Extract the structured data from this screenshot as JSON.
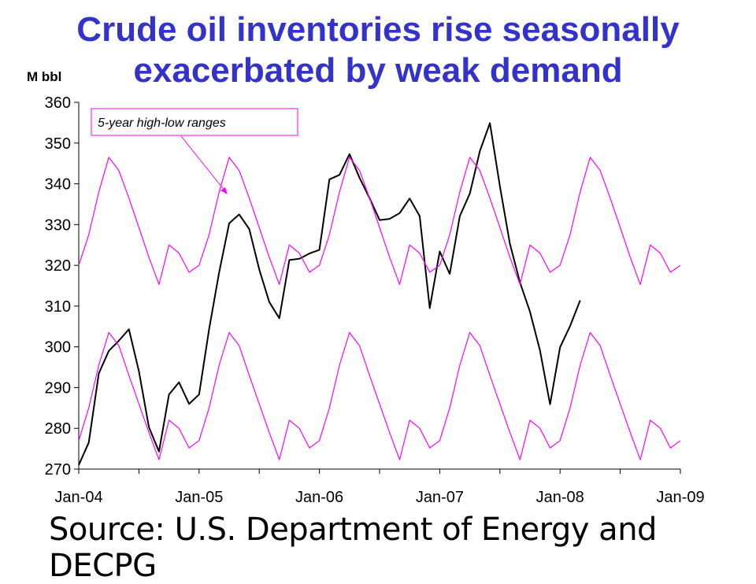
{
  "chart_data": {
    "type": "line",
    "title": [
      "Crude oil inventories rise seasonally",
      "exacerbated by weak demand"
    ],
    "ylabel": "M bbl",
    "ylim": [
      270,
      360
    ],
    "yticks": [
      270,
      280,
      290,
      300,
      310,
      320,
      330,
      340,
      350,
      360
    ],
    "xlim": [
      "2004-01",
      "2009-01"
    ],
    "xticks": [
      {
        "date": "2004-01",
        "label": "Jan-04"
      },
      {
        "date": "2005-01",
        "label": "Jan-05"
      },
      {
        "date": "2006-01",
        "label": "Jan-06"
      },
      {
        "date": "2007-01",
        "label": "Jan-07"
      },
      {
        "date": "2008-01",
        "label": "Jan-08"
      },
      {
        "date": "2009-01",
        "label": "Jan-09"
      }
    ],
    "grid": false,
    "annotation": "5-year high-low ranges",
    "colors": {
      "title": "#3333cc",
      "range_lines": "#ff00ff",
      "inventory_line": "#000000"
    },
    "series": [
      {
        "role": "inventory",
        "dates": [
          "2004-01",
          "2004-02",
          "2004-03",
          "2004-04",
          "2004-05",
          "2004-06",
          "2004-07",
          "2004-08",
          "2004-09",
          "2004-10",
          "2004-11",
          "2004-12",
          "2005-01",
          "2005-02",
          "2005-03",
          "2005-04",
          "2005-05",
          "2005-06",
          "2005-07",
          "2005-08",
          "2005-09",
          "2005-10",
          "2005-11",
          "2005-12",
          "2006-01",
          "2006-02",
          "2006-03",
          "2006-04",
          "2006-05",
          "2006-06",
          "2006-07",
          "2006-08",
          "2006-09",
          "2006-10",
          "2006-11",
          "2006-12",
          "2007-01",
          "2007-02",
          "2007-03",
          "2007-04",
          "2007-05",
          "2007-06",
          "2007-07",
          "2007-08",
          "2007-09",
          "2007-10",
          "2007-11",
          "2007-12",
          "2008-01",
          "2008-02",
          "2008-03",
          "2008-04"
        ],
        "values": [
          271,
          276.5,
          293.5,
          299,
          301.5,
          304.3,
          294,
          280.3,
          274.3,
          288.3,
          291.3,
          286,
          288.3,
          304.3,
          318.3,
          330.3,
          332.5,
          328.9,
          319,
          311,
          307,
          321.3,
          321.6,
          322.9,
          323.8,
          341.1,
          342.2,
          347.3,
          341.5,
          336.5,
          331.1,
          331.4,
          332.8,
          336.4,
          332.1,
          309.5,
          323.4,
          317.9,
          332.1,
          337.6,
          348,
          354.9,
          339.4,
          325.3,
          315.8,
          308.6,
          299.1,
          285.9,
          299.9,
          305.1,
          311.4,
          null
        ]
      },
      {
        "role": "range-high",
        "dates": [
          "2004-01",
          "2004-02",
          "2004-03",
          "2004-04",
          "2004-05",
          "2004-06",
          "2004-07",
          "2004-08",
          "2004-09",
          "2004-10",
          "2004-11",
          "2004-12",
          "2005-01",
          "2005-02",
          "2005-03",
          "2005-04",
          "2005-05",
          "2005-06",
          "2005-07",
          "2005-08",
          "2005-09",
          "2005-10",
          "2005-11",
          "2005-12",
          "2006-01",
          "2006-02",
          "2006-03",
          "2006-04",
          "2006-05",
          "2006-06",
          "2006-07",
          "2006-08",
          "2006-09",
          "2006-10",
          "2006-11",
          "2006-12",
          "2007-01",
          "2007-02",
          "2007-03",
          "2007-04",
          "2007-05",
          "2007-06",
          "2007-07",
          "2007-08",
          "2007-09",
          "2007-10",
          "2007-11",
          "2007-12",
          "2008-01",
          "2008-02",
          "2008-03",
          "2008-04",
          "2008-05",
          "2008-06",
          "2008-07",
          "2008-08",
          "2008-09",
          "2008-10",
          "2008-11",
          "2008-12",
          "2009-01"
        ],
        "values": [
          320,
          327.5,
          338,
          346.5,
          343.3,
          336.5,
          329.3,
          322,
          315.3,
          325,
          323,
          318.3,
          320,
          327.5,
          338,
          346.5,
          343.3,
          336.5,
          329.3,
          322,
          315.3,
          325,
          323,
          318.3,
          320,
          327.5,
          338,
          346.5,
          343.3,
          336.5,
          329.3,
          322,
          315.3,
          325,
          323,
          318.3,
          320,
          327.5,
          338,
          346.5,
          343.3,
          336.5,
          329.3,
          322,
          315.3,
          325,
          323,
          318.3,
          320,
          327.5,
          338,
          346.5,
          343.3,
          336.5,
          329.3,
          322,
          315.3,
          325,
          323,
          318.3,
          320
        ]
      },
      {
        "role": "range-low",
        "dates": [
          "2004-01",
          "2004-02",
          "2004-03",
          "2004-04",
          "2004-05",
          "2004-06",
          "2004-07",
          "2004-08",
          "2004-09",
          "2004-10",
          "2004-11",
          "2004-12",
          "2005-01",
          "2005-02",
          "2005-03",
          "2005-04",
          "2005-05",
          "2005-06",
          "2005-07",
          "2005-08",
          "2005-09",
          "2005-10",
          "2005-11",
          "2005-12",
          "2006-01",
          "2006-02",
          "2006-03",
          "2006-04",
          "2006-05",
          "2006-06",
          "2006-07",
          "2006-08",
          "2006-09",
          "2006-10",
          "2006-11",
          "2006-12",
          "2007-01",
          "2007-02",
          "2007-03",
          "2007-04",
          "2007-05",
          "2007-06",
          "2007-07",
          "2007-08",
          "2007-09",
          "2007-10",
          "2007-11",
          "2007-12",
          "2008-01",
          "2008-02",
          "2008-03",
          "2008-04",
          "2008-05",
          "2008-06",
          "2008-07",
          "2008-08",
          "2008-09",
          "2008-10",
          "2008-11",
          "2008-12",
          "2009-01"
        ],
        "values": [
          277,
          285,
          295.5,
          303.5,
          300.3,
          293,
          286,
          279,
          272.3,
          282,
          280,
          275.2,
          277,
          285,
          295.5,
          303.5,
          300.3,
          293,
          286,
          279,
          272.3,
          282,
          280,
          275.2,
          277,
          285,
          295.5,
          303.5,
          300.3,
          293,
          286,
          279,
          272.3,
          282,
          280,
          275.2,
          277,
          285,
          295.5,
          303.5,
          300.3,
          293,
          286,
          279,
          272.3,
          282,
          280,
          275.2,
          277,
          285,
          295.5,
          303.5,
          300.3,
          293,
          286,
          279,
          272.3,
          282,
          280,
          275.2,
          277
        ]
      }
    ]
  },
  "source": "Source: U.S. Department of Energy and DECPG"
}
